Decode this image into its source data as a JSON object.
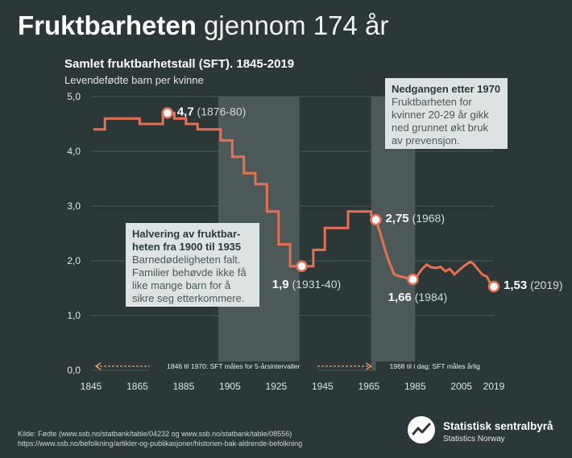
{
  "headline": {
    "bold": "Fruktbarheten",
    "light": "gjennom 174 år"
  },
  "chart_data": {
    "type": "line",
    "title": "Samlet fruktbarhetstall (SFT). 1845-2019",
    "subtitle": "Levendefødte barn per kvinne",
    "xlabel": "",
    "ylabel": "Levendefødte barn per kvinne",
    "xlim": [
      1845,
      2019
    ],
    "ylim": [
      0,
      5
    ],
    "x_ticks": [
      {
        "value": 1845,
        "label": "1845"
      },
      {
        "value": 1865,
        "label": "1865"
      },
      {
        "value": 1885,
        "label": "1885"
      },
      {
        "value": 1905,
        "label": "1905"
      },
      {
        "value": 1925,
        "label": "1925"
      },
      {
        "value": 1945,
        "label": "1945"
      },
      {
        "value": 1965,
        "label": "1965"
      },
      {
        "value": 1985,
        "label": "1985"
      },
      {
        "value": 2005,
        "label": "2005"
      },
      {
        "value": 2019,
        "label": "2019"
      }
    ],
    "y_ticks": [
      {
        "value": 0,
        "label": "0,0"
      },
      {
        "value": 1,
        "label": "1,0"
      },
      {
        "value": 2,
        "label": "2,0"
      },
      {
        "value": 3,
        "label": "3,0"
      },
      {
        "value": 4,
        "label": "4,0"
      },
      {
        "value": 5,
        "label": "5,0"
      }
    ],
    "grid": "horizontal",
    "series": [
      {
        "name": "SFT",
        "color": "#e8704f",
        "points": [
          [
            1846,
            4.4
          ],
          [
            1851,
            4.4
          ],
          [
            1851,
            4.6
          ],
          [
            1866,
            4.6
          ],
          [
            1866,
            4.5
          ],
          [
            1876,
            4.5
          ],
          [
            1876,
            4.7
          ],
          [
            1881,
            4.7
          ],
          [
            1881,
            4.6
          ],
          [
            1886,
            4.6
          ],
          [
            1886,
            4.5
          ],
          [
            1891,
            4.5
          ],
          [
            1891,
            4.4
          ],
          [
            1901,
            4.4
          ],
          [
            1901,
            4.2
          ],
          [
            1906,
            4.2
          ],
          [
            1906,
            3.9
          ],
          [
            1911,
            3.9
          ],
          [
            1911,
            3.6
          ],
          [
            1916,
            3.6
          ],
          [
            1916,
            3.4
          ],
          [
            1921,
            3.4
          ],
          [
            1921,
            2.9
          ],
          [
            1926,
            2.9
          ],
          [
            1926,
            2.3
          ],
          [
            1931,
            2.3
          ],
          [
            1931,
            1.9
          ],
          [
            1941,
            1.9
          ],
          [
            1941,
            2.2
          ],
          [
            1946,
            2.2
          ],
          [
            1946,
            2.6
          ],
          [
            1956,
            2.6
          ],
          [
            1956,
            2.9
          ],
          [
            1966,
            2.9
          ],
          [
            1966,
            2.83
          ],
          [
            1968,
            2.75
          ],
          [
            1970,
            2.5
          ],
          [
            1972,
            2.2
          ],
          [
            1974,
            1.95
          ],
          [
            1976,
            1.75
          ],
          [
            1978,
            1.72
          ],
          [
            1980,
            1.7
          ],
          [
            1982,
            1.68
          ],
          [
            1984,
            1.66
          ],
          [
            1986,
            1.73
          ],
          [
            1988,
            1.85
          ],
          [
            1990,
            1.93
          ],
          [
            1992,
            1.88
          ],
          [
            1994,
            1.87
          ],
          [
            1996,
            1.89
          ],
          [
            1998,
            1.81
          ],
          [
            2000,
            1.85
          ],
          [
            2002,
            1.75
          ],
          [
            2004,
            1.83
          ],
          [
            2006,
            1.9
          ],
          [
            2008,
            1.96
          ],
          [
            2009,
            1.98
          ],
          [
            2010,
            1.95
          ],
          [
            2012,
            1.85
          ],
          [
            2014,
            1.75
          ],
          [
            2016,
            1.71
          ],
          [
            2017,
            1.62
          ],
          [
            2018,
            1.56
          ],
          [
            2019,
            1.53
          ]
        ]
      }
    ],
    "shaded_periods": [
      {
        "from": 1900,
        "to": 1935
      },
      {
        "from": 1966,
        "to": 1985
      }
    ],
    "highlight_points": [
      {
        "x": 1878,
        "y": 4.7,
        "value_label": "4,7",
        "period_label": "(1876-80)",
        "anchor": "right"
      },
      {
        "x": 1936,
        "y": 1.9,
        "value_label": "1,9",
        "period_label": "(1931-40)",
        "anchor": "below"
      },
      {
        "x": 1968,
        "y": 2.75,
        "value_label": "2,75",
        "period_label": "(1968)",
        "anchor": "right"
      },
      {
        "x": 1984,
        "y": 1.66,
        "value_label": "1,66",
        "period_label": "(1984)",
        "anchor": "below"
      },
      {
        "x": 2019,
        "y": 1.53,
        "value_label": "1,53",
        "period_label": "(2019)",
        "anchor": "right"
      }
    ],
    "range_annotations": [
      {
        "from": 1845,
        "to": 1967,
        "label": "1846 til 1970: SFT måles for 5-årsintervaller"
      },
      {
        "from": 1967,
        "to": 2019,
        "label": "1968 til i dag: SFT måles årlig"
      }
    ]
  },
  "callouts": {
    "c1970": {
      "title": "Nedgangen etter 1970",
      "body": "Fruktbarheten for kvinner 20-29 år gikk ned grunnet økt bruk av prevensjon."
    },
    "c1900": {
      "title": "Halvering av fruktbar-heten fra 1900 til 1935",
      "body": "Barnedødeligheten falt. Familier behøvde ikke få like mange barn for å sikre seg etterkommere."
    }
  },
  "source": {
    "line1": "Kilde: Fødte (www.ssb.no/statbank/table/04232 og www.ssb.no/statbank/table/08556)",
    "line2": "https://www.ssb.no/befolkning/artikler-og-publikasjoner/historien-bak-aldrende-befolkning"
  },
  "logo": {
    "name": "Statistisk sentralbyrå",
    "sub": "Statistics Norway"
  },
  "colors": {
    "background": "#2c3838",
    "line": "#e8704f",
    "callout": "#dde2e2"
  }
}
